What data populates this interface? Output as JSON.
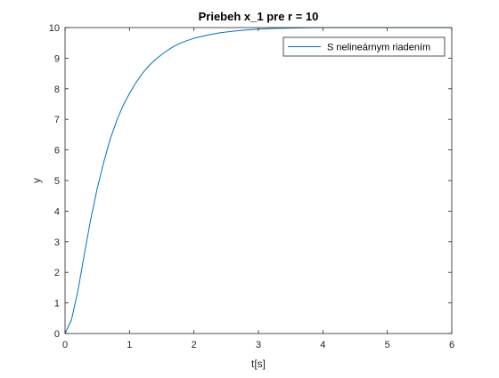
{
  "chart_data": {
    "type": "line",
    "title": "Priebeh x_1 pre r = 10",
    "xlabel": "t[s]",
    "ylabel": "y",
    "xlim": [
      0,
      6
    ],
    "ylim": [
      0,
      10
    ],
    "xticks": [
      "0",
      "1",
      "2",
      "3",
      "4",
      "5",
      "6"
    ],
    "yticks": [
      "0",
      "1",
      "2",
      "3",
      "4",
      "5",
      "6",
      "7",
      "8",
      "9",
      "10"
    ],
    "grid": false,
    "legend_position": "top-right",
    "series": [
      {
        "name": "S nelineárnym riadením",
        "color": "#0072bd",
        "x": [
          0,
          0.1,
          0.2,
          0.3,
          0.4,
          0.5,
          0.6,
          0.7,
          0.8,
          0.9,
          1.0,
          1.1,
          1.2,
          1.3,
          1.4,
          1.5,
          1.6,
          1.7,
          1.8,
          1.9,
          2.0,
          2.2,
          2.4,
          2.6,
          2.8,
          3.0,
          3.2,
          3.4,
          3.6,
          3.8,
          4.0,
          4.5,
          5.0,
          5.5,
          6.0
        ],
        "y": [
          0,
          0.45,
          1.4,
          2.6,
          3.75,
          4.75,
          5.6,
          6.35,
          6.95,
          7.45,
          7.85,
          8.2,
          8.5,
          8.75,
          8.95,
          9.12,
          9.27,
          9.4,
          9.5,
          9.58,
          9.65,
          9.75,
          9.83,
          9.88,
          9.92,
          9.95,
          9.97,
          9.98,
          9.99,
          9.995,
          10,
          10,
          10,
          10,
          10
        ]
      }
    ]
  }
}
